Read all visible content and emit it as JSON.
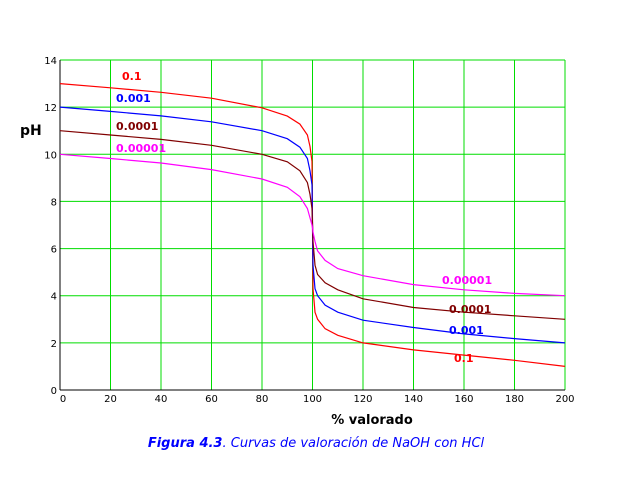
{
  "chart_data": {
    "type": "line",
    "title": "",
    "xlabel": "% valorado",
    "ylabel": "pH",
    "xlim": [
      0,
      200
    ],
    "ylim": [
      0,
      14
    ],
    "xticks": [
      "0",
      "20",
      "40",
      "60",
      "80",
      "100",
      "120",
      "140",
      "160",
      "180",
      "200"
    ],
    "yticks": [
      "0",
      "2",
      "4",
      "6",
      "8",
      "10",
      "12",
      "14"
    ],
    "grid": true,
    "grid_color": "#00dd00",
    "series": [
      {
        "name": "0.1",
        "color": "#ff0000",
        "label_left": "0.1",
        "label_right": "0.1",
        "x": [
          0,
          20,
          40,
          60,
          80,
          90,
          95,
          98,
          99,
          99.8,
          100,
          100.2,
          101,
          102,
          105,
          110,
          120,
          140,
          160,
          180,
          200
        ],
        "y": [
          13.0,
          12.82,
          12.63,
          12.38,
          11.97,
          11.62,
          11.28,
          10.82,
          10.33,
          9.7,
          7.0,
          4.3,
          3.3,
          3.0,
          2.6,
          2.32,
          2.0,
          1.7,
          1.48,
          1.26,
          1.0
        ]
      },
      {
        "name": "0.001",
        "color": "#0000ff",
        "label_left": "0.001",
        "label_right": "0.001",
        "x": [
          0,
          20,
          40,
          60,
          80,
          90,
          95,
          98,
          99,
          99.8,
          100,
          100.2,
          101,
          102,
          105,
          110,
          120,
          140,
          160,
          180,
          200
        ],
        "y": [
          12.0,
          11.82,
          11.63,
          11.38,
          11.0,
          10.66,
          10.3,
          9.82,
          9.3,
          8.7,
          7.0,
          5.3,
          4.3,
          4.0,
          3.6,
          3.3,
          2.96,
          2.65,
          2.38,
          2.18,
          2.0
        ]
      },
      {
        "name": "0.0001",
        "color": "#800000",
        "label_left": "0.0001",
        "label_right": "0.0001",
        "x": [
          0,
          20,
          40,
          60,
          80,
          90,
          95,
          98,
          99,
          99.8,
          100,
          100.2,
          101,
          102,
          105,
          110,
          120,
          140,
          160,
          180,
          200
        ],
        "y": [
          11.0,
          10.82,
          10.63,
          10.38,
          10.0,
          9.68,
          9.3,
          8.8,
          8.3,
          7.7,
          7.0,
          6.3,
          5.3,
          4.9,
          4.55,
          4.25,
          3.87,
          3.5,
          3.3,
          3.15,
          3.0
        ]
      },
      {
        "name": "0.00001",
        "color": "#ff00ff",
        "label_left": "0.00001",
        "label_right": "0.00001",
        "x": [
          0,
          20,
          40,
          60,
          80,
          90,
          95,
          98,
          99,
          99.8,
          100,
          100.2,
          101,
          102,
          105,
          110,
          120,
          140,
          160,
          180,
          200
        ],
        "y": [
          10.0,
          9.82,
          9.63,
          9.35,
          8.95,
          8.6,
          8.2,
          7.7,
          7.3,
          7.0,
          6.9,
          6.7,
          6.3,
          5.9,
          5.5,
          5.15,
          4.85,
          4.47,
          4.25,
          4.1,
          4.0
        ]
      }
    ],
    "caption_bold": "Figura 4.3",
    "caption_rest": ". Curvas de valoración de NaOH con HCl"
  }
}
